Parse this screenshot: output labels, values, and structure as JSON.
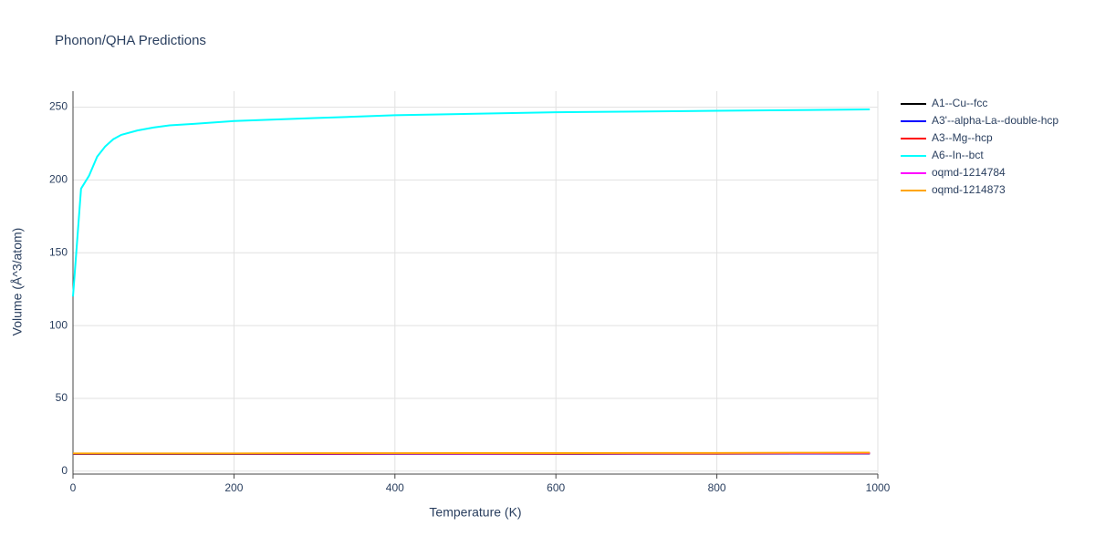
{
  "chart_data": {
    "type": "line",
    "title": "Phonon/QHA Predictions",
    "x_label": "Temperature (K)",
    "y_label": "Volume (Å^3/atom)",
    "x": [
      0,
      10,
      20,
      30,
      40,
      50,
      60,
      80,
      100,
      120,
      150,
      200,
      300,
      400,
      500,
      600,
      700,
      800,
      900,
      990
    ],
    "series": [
      {
        "name": "A1--Cu--fcc",
        "color": "#000000",
        "values": [
          11.8,
          11.8,
          11.8,
          11.8,
          11.8,
          11.8,
          11.8,
          11.8,
          11.8,
          11.8,
          11.8,
          11.8,
          11.8,
          11.9,
          11.9,
          11.9,
          12.0,
          12.0,
          12.1,
          12.2
        ]
      },
      {
        "name": "A3'--alpha-La--double-hcp",
        "color": "#0000ff",
        "values": [
          11.9,
          11.9,
          11.9,
          11.9,
          11.9,
          11.9,
          11.9,
          11.9,
          11.9,
          11.9,
          11.9,
          11.9,
          11.9,
          11.9,
          12.0,
          12.0,
          12.0,
          12.1,
          12.1,
          12.2
        ]
      },
      {
        "name": "A3--Mg--hcp",
        "color": "#ff0000",
        "values": [
          12.0,
          12.0,
          12.0,
          12.0,
          12.0,
          12.0,
          12.0,
          12.0,
          12.0,
          12.0,
          12.0,
          12.0,
          12.0,
          12.1,
          12.1,
          12.1,
          12.2,
          12.2,
          12.3,
          12.3
        ]
      },
      {
        "name": "A6--In--bct",
        "color": "#00ffff",
        "values": [
          120,
          194,
          203,
          216,
          223,
          228,
          231,
          234,
          236,
          237.5,
          238.5,
          240.5,
          242.5,
          244.5,
          245.5,
          246.5,
          247,
          247.5,
          248,
          248.5
        ]
      },
      {
        "name": "oqmd-1214784",
        "color": "#ff00ff",
        "values": [
          12.1,
          12.1,
          12.1,
          12.1,
          12.1,
          12.1,
          12.1,
          12.1,
          12.1,
          12.1,
          12.1,
          12.1,
          12.1,
          12.2,
          12.2,
          12.3,
          12.3,
          12.4,
          12.4,
          12.5
        ]
      },
      {
        "name": "oqmd-1214873",
        "color": "#ffa500",
        "values": [
          12.2,
          12.2,
          12.2,
          12.2,
          12.2,
          12.2,
          12.2,
          12.2,
          12.2,
          12.2,
          12.2,
          12.2,
          12.3,
          12.3,
          12.4,
          12.4,
          12.5,
          12.5,
          12.6,
          12.7
        ]
      }
    ],
    "xlim": [
      0,
      1000
    ],
    "xticks": [
      0,
      200,
      400,
      600,
      800,
      1000
    ],
    "ylim": [
      -2,
      261
    ],
    "yticks": [
      0,
      50,
      100,
      150,
      200,
      250
    ],
    "grid": true,
    "legend": "right"
  }
}
